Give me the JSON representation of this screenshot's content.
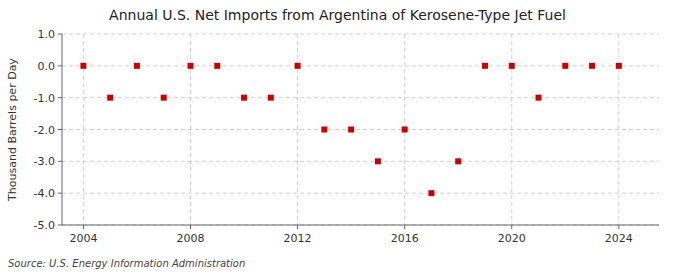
{
  "chart_data": {
    "type": "scatter",
    "title": "Annual U.S. Net Imports from Argentina of Kerosene-Type Jet Fuel",
    "y_label": "Thousand Barrels per Day",
    "source": "Source: U.S. Energy Information Administration",
    "x": [
      2004,
      2005,
      2006,
      2007,
      2008,
      2009,
      2010,
      2011,
      2012,
      2013,
      2014,
      2015,
      2016,
      2017,
      2018,
      2019,
      2020,
      2021,
      2022,
      2023,
      2024
    ],
    "values": [
      0,
      -1,
      0,
      -1,
      0,
      0,
      -1,
      -1,
      0,
      -2,
      -2,
      -3,
      -2,
      -4,
      -3,
      0,
      0,
      -1,
      0,
      0,
      0
    ],
    "color": "#cc0000",
    "marker": "square",
    "xlim": [
      2003.2,
      2025.5
    ],
    "xticks": [
      2004,
      2008,
      2012,
      2016,
      2020,
      2024
    ],
    "ylim": [
      -5.0,
      1.0
    ],
    "yticks": [
      {
        "value": 1.0,
        "label": "1.0"
      },
      {
        "value": 0.0,
        "label": "0.0"
      },
      {
        "value": -1.0,
        "label": "-1.0"
      },
      {
        "value": -2.0,
        "label": "-2.0"
      },
      {
        "value": -3.0,
        "label": "-3.0"
      },
      {
        "value": -4.0,
        "label": "-4.0"
      },
      {
        "value": -5.0,
        "label": "-5.0"
      }
    ],
    "grid": true
  }
}
